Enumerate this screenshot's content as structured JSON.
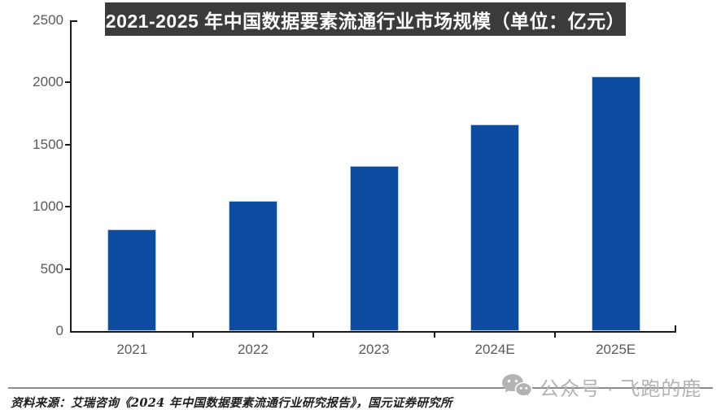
{
  "title": {
    "text": "2021-2025 年中国数据要素流通行业市场规模（单位：亿元）"
  },
  "chart_data": {
    "type": "bar",
    "categories": [
      "2021",
      "2022",
      "2023",
      "2024E",
      "2025E"
    ],
    "values": [
      820,
      1050,
      1330,
      1660,
      2050
    ],
    "title": "2021-2025 年中国数据要素流通行业市场规模（单位：亿元）",
    "unit": "亿元",
    "xlabel": "",
    "ylabel": "",
    "ylim": [
      0,
      2500
    ],
    "yticks": [
      0,
      500,
      1000,
      1500,
      2000,
      2500
    ],
    "grid": false,
    "legend_position": "none",
    "bar_color": "#0C4DA2"
  },
  "footer": {
    "source_text": "资料来源：艾瑞咨询《2024 年中国数据要素流通行业研究报告》，国元证券研究所"
  },
  "watermark": {
    "icon": "wechat-icon",
    "label": "公众号 · 飞跑的鹿"
  },
  "colors": {
    "banner_bg": "#3B3B3B",
    "banner_text": "#FFFFFF",
    "bar_fill": "#0C4DA2",
    "bar_border": "#B9CCE8",
    "axis": "#1A1A1A",
    "tick_label": "#595959",
    "divider": "#8C8C8C",
    "watermark": "#B3B3B3",
    "source_text": "#1F1F1F"
  }
}
